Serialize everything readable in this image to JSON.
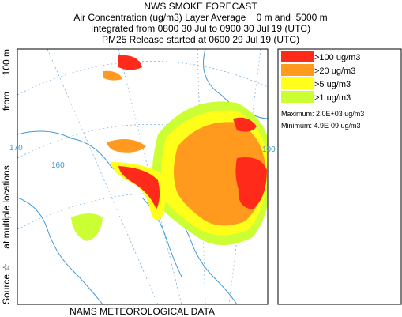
{
  "header": {
    "title": "NWS SMOKE FORECAST",
    "lines": [
      "Air Concentration (ug/m3) Layer Average    0 m and  5000 m",
      "Integrated from 0800 30 Jul to 0900 30 Jul 19 (UTC)",
      "PM25 Release started at 0600 29 Jul 19 (UTC)"
    ]
  },
  "legend": {
    "items": [
      {
        "label": ">100 ug/m3",
        "color": "#ff2a1a"
      },
      {
        "label": ">20 ug/m3",
        "color": "#ff9a1f"
      },
      {
        "label": ">5 ug/m3",
        "color": "#ffff1a"
      },
      {
        "label": ">1 ug/m3",
        "color": "#ccff33"
      }
    ],
    "maximum": "Maximum: 2.0E+03 ug/m3",
    "minimum": "Minimum: 4.9E-09 ug/m3"
  },
  "side_label": {
    "source": "Source ☆",
    "locations": "at multiple locations",
    "from": "from",
    "height": "100 m"
  },
  "map": {
    "labels": [
      "170",
      "160",
      "100"
    ]
  },
  "footer": "NAMS METEOROLOGICAL DATA"
}
